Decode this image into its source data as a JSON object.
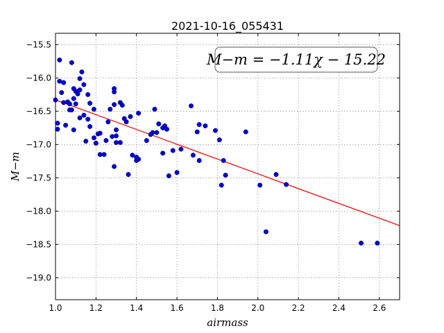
{
  "chart_data": {
    "type": "scatter",
    "title": "2021-10-16_055431",
    "xlabel": "airmass",
    "ylabel": "M−m",
    "xlim": [
      1.0,
      2.7
    ],
    "ylim": [
      -19.33,
      -15.33
    ],
    "y_inverted": true,
    "grid": true,
    "x_ticks": [
      1.0,
      1.2,
      1.4,
      1.6,
      1.8,
      2.0,
      2.2,
      2.4,
      2.6
    ],
    "x_tick_labels": [
      "1.0",
      "1.2",
      "1.4",
      "1.6",
      "1.8",
      "2.0",
      "2.2",
      "2.4",
      "2.6"
    ],
    "y_ticks": [
      -15.5,
      -16.0,
      -16.5,
      -17.0,
      -17.5,
      -18.0,
      -18.5,
      -19.0
    ],
    "y_tick_labels": [
      "−15.5",
      "−16.0",
      "−16.5",
      "−17.0",
      "−17.5",
      "−18.0",
      "−18.5",
      "−19.0"
    ],
    "annotation": "M−m = −1.11χ − 15.22",
    "fit": {
      "slope": -1.11,
      "intercept": -15.22
    },
    "points": {
      "x": [
        1.0,
        1.01,
        1.01,
        1.02,
        1.02,
        1.03,
        1.04,
        1.04,
        1.05,
        1.06,
        1.07,
        1.07,
        1.08,
        1.08,
        1.09,
        1.09,
        1.09,
        1.1,
        1.1,
        1.11,
        1.12,
        1.12,
        1.12,
        1.13,
        1.14,
        1.14,
        1.15,
        1.16,
        1.16,
        1.17,
        1.17,
        1.19,
        1.19,
        1.2,
        1.2,
        1.21,
        1.22,
        1.22,
        1.24,
        1.25,
        1.26,
        1.27,
        1.28,
        1.29,
        1.29,
        1.29,
        1.29,
        1.3,
        1.3,
        1.3,
        1.32,
        1.32,
        1.33,
        1.34,
        1.35,
        1.36,
        1.37,
        1.38,
        1.4,
        1.4,
        1.41,
        1.41,
        1.45,
        1.47,
        1.48,
        1.49,
        1.5,
        1.51,
        1.53,
        1.53,
        1.54,
        1.55,
        1.56,
        1.58,
        1.6,
        1.62,
        1.67,
        1.68,
        1.7,
        1.71,
        1.71,
        1.74,
        1.79,
        1.81,
        1.82,
        1.83,
        1.84,
        1.94,
        2.01,
        2.04,
        2.09,
        2.14,
        2.51,
        2.59
      ],
      "y": [
        -16.33,
        -16.68,
        -16.77,
        -16.05,
        -15.73,
        -16.22,
        -16.07,
        -16.37,
        -16.71,
        -16.36,
        -16.39,
        -16.48,
        -15.77,
        -16.48,
        -16.78,
        -16.16,
        -16.31,
        -16.2,
        -16.39,
        -16.24,
        -16.01,
        -16.18,
        -16.6,
        -15.91,
        -16.1,
        -16.56,
        -16.95,
        -16.62,
        -16.25,
        -16.38,
        -16.73,
        -16.47,
        -16.9,
        -16.98,
        -16.98,
        -16.84,
        -17.15,
        -16.83,
        -17.15,
        -16.94,
        -16.66,
        -16.47,
        -16.88,
        -16.16,
        -16.21,
        -16.4,
        -17.33,
        -16.87,
        -16.78,
        -16.97,
        -16.37,
        -16.97,
        -16.41,
        -16.61,
        -16.66,
        -17.45,
        -16.58,
        -17.16,
        -17.24,
        -17.19,
        -16.53,
        -17.22,
        -16.94,
        -16.85,
        -16.82,
        -16.47,
        -16.82,
        -16.69,
        -16.75,
        -17.13,
        -16.72,
        -16.77,
        -17.47,
        -17.09,
        -17.42,
        -17.07,
        -16.42,
        -17.16,
        -16.81,
        -16.7,
        -17.24,
        -16.72,
        -16.79,
        -16.93,
        -17.61,
        -17.24,
        -17.46,
        -16.81,
        -17.61,
        -18.31,
        -17.45,
        -17.6,
        -18.48,
        -18.48
      ]
    },
    "colors": {
      "points": "#0000cc",
      "fit_line": "#ee0000",
      "grid": "#999999"
    }
  }
}
